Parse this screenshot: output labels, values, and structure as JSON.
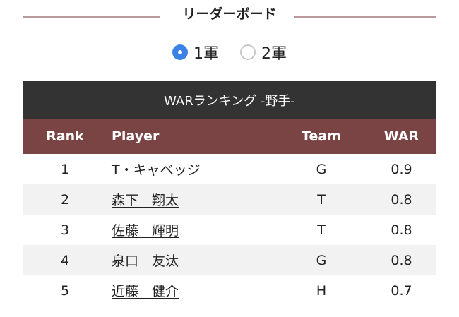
{
  "header": {
    "title": "リーダーボード"
  },
  "filters": {
    "options": [
      {
        "label": "1軍",
        "selected": true
      },
      {
        "label": "2軍",
        "selected": false
      }
    ],
    "accent": "#3b82e6"
  },
  "table": {
    "caption": "WARランキング -野手-",
    "columns": [
      "Rank",
      "Player",
      "Team",
      "WAR"
    ],
    "rows": [
      {
        "rank": "1",
        "player": "T・キャベッジ",
        "team": "G",
        "war": "0.9"
      },
      {
        "rank": "2",
        "player": "森下　翔太",
        "team": "T",
        "war": "0.8"
      },
      {
        "rank": "3",
        "player": "佐藤　輝明",
        "team": "T",
        "war": "0.8"
      },
      {
        "rank": "4",
        "player": "泉口　友汰",
        "team": "G",
        "war": "0.8"
      },
      {
        "rank": "5",
        "player": "近藤　健介",
        "team": "H",
        "war": "0.7"
      }
    ],
    "colors": {
      "caption_bg": "#333333",
      "header_bg": "#7a4444",
      "alt_row_bg": "#f2f2f2"
    }
  }
}
